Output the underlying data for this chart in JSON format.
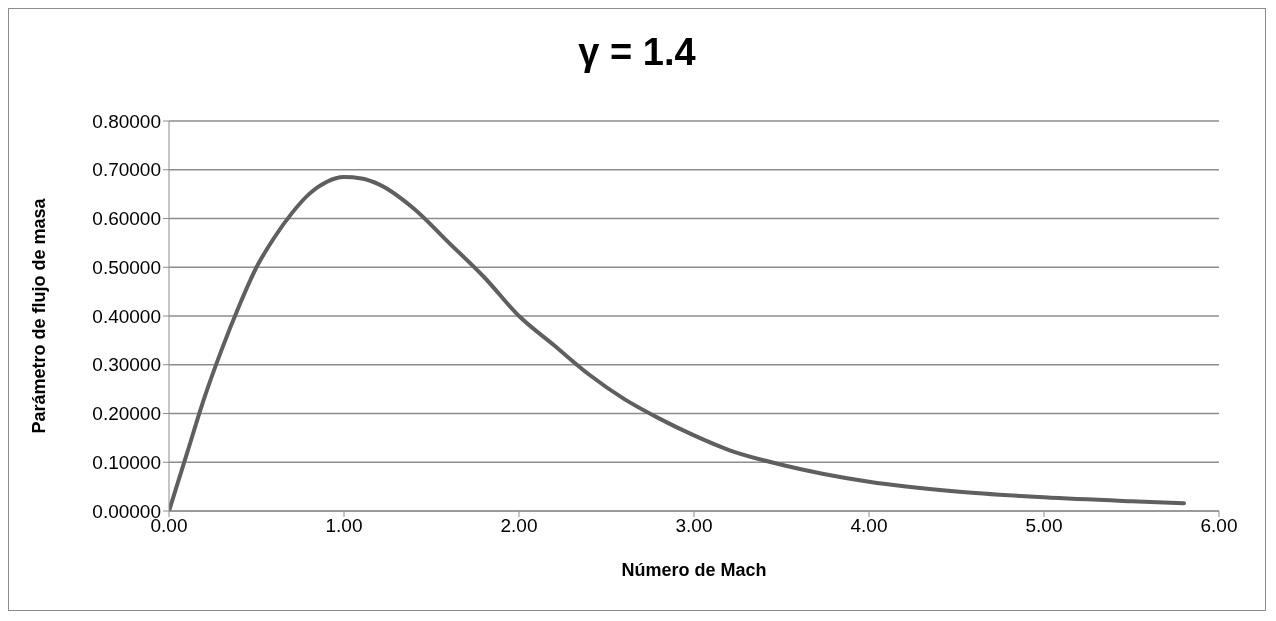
{
  "chart_data": {
    "type": "line",
    "title": "γ = 1.4",
    "xlabel": "Número de Mach",
    "ylabel": "Parámetro de flujo de masa",
    "x": [
      0,
      0.1,
      0.2,
      0.3,
      0.4,
      0.5,
      0.6,
      0.7,
      0.8,
      0.9,
      1.0,
      1.1,
      1.2,
      1.4,
      1.6,
      1.8,
      2.0,
      2.2,
      2.4,
      2.6,
      2.8,
      3.0,
      3.2,
      3.5,
      4.0,
      4.5,
      5.0,
      5.5,
      5.8
    ],
    "series": [
      {
        "color": "#5f5f5f",
        "values": [
          0,
          0.115,
          0.23,
          0.33,
          0.42,
          0.5,
          0.56,
          0.61,
          0.65,
          0.675,
          0.685,
          0.682,
          0.67,
          0.62,
          0.55,
          0.48,
          0.4,
          0.34,
          0.28,
          0.23,
          0.19,
          0.155,
          0.125,
          0.095,
          0.06,
          0.04,
          0.028,
          0.02,
          0.016
        ]
      }
    ],
    "xlim": [
      0,
      6
    ],
    "xticks": [
      {
        "value": 0,
        "label": "0.00"
      },
      {
        "value": 1,
        "label": "1.00"
      },
      {
        "value": 2,
        "label": "2.00"
      },
      {
        "value": 3,
        "label": "3.00"
      },
      {
        "value": 4,
        "label": "4.00"
      },
      {
        "value": 5,
        "label": "5.00"
      },
      {
        "value": 6,
        "label": "6.00"
      }
    ],
    "ylim": [
      0,
      0.8
    ],
    "yticks": [
      {
        "value": 0,
        "label": "0.00000"
      },
      {
        "value": 0.1,
        "label": "0.10000"
      },
      {
        "value": 0.2,
        "label": "0.20000"
      },
      {
        "value": 0.3,
        "label": "0.30000"
      },
      {
        "value": 0.4,
        "label": "0.40000"
      },
      {
        "value": 0.5,
        "label": "0.50000"
      },
      {
        "value": 0.6,
        "label": "0.60000"
      },
      {
        "value": 0.7,
        "label": "0.70000"
      },
      {
        "value": 0.8,
        "label": "0.80000"
      }
    ],
    "grid": "y",
    "legend": false,
    "marker": "none",
    "line_style": "solid"
  }
}
